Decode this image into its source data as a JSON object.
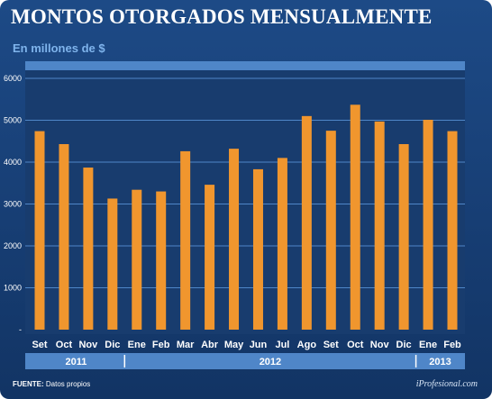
{
  "header": {
    "title": "MONTOS OTORGADOS MENSUALMENTE",
    "subtitle": "En millones de $"
  },
  "footer": {
    "source_label": "FUENTE:",
    "source_text": "Datos propios",
    "brand": "iProfesional.com"
  },
  "colors": {
    "bar": "#f0962e",
    "plot_bg": "#183c6e",
    "grid": "#4f86c8",
    "axis_band": "#4f86c8"
  },
  "chart_data": {
    "type": "bar",
    "title": "MONTOS OTORGADOS MENSUALMENTE",
    "subtitle": "En millones de $",
    "categories": [
      "Set",
      "Oct",
      "Nov",
      "Dic",
      "Ene",
      "Feb",
      "Mar",
      "Abr",
      "May",
      "Jun",
      "Jul",
      "Ago",
      "Set",
      "Oct",
      "Nov",
      "Dic",
      "Ene",
      "Feb"
    ],
    "values": [
      4740,
      4430,
      3870,
      3130,
      3340,
      3300,
      4260,
      3460,
      4320,
      3830,
      4100,
      5100,
      4750,
      5370,
      4970,
      4430,
      5010,
      4740
    ],
    "year_groups": [
      {
        "label": "2011",
        "start": 0,
        "end": 3
      },
      {
        "label": "2012",
        "start": 4,
        "end": 15
      },
      {
        "label": "2013",
        "start": 16,
        "end": 17
      }
    ],
    "ylim": [
      0,
      6000
    ],
    "yticks": [
      {
        "value": 0,
        "label": "-"
      },
      {
        "value": 1000,
        "label": "1000"
      },
      {
        "value": 2000,
        "label": "2000"
      },
      {
        "value": 3000,
        "label": "3000"
      },
      {
        "value": 4000,
        "label": "4000"
      },
      {
        "value": 5000,
        "label": "5000"
      },
      {
        "value": 6000,
        "label": "6000"
      }
    ],
    "grid": true,
    "legend": "none"
  }
}
